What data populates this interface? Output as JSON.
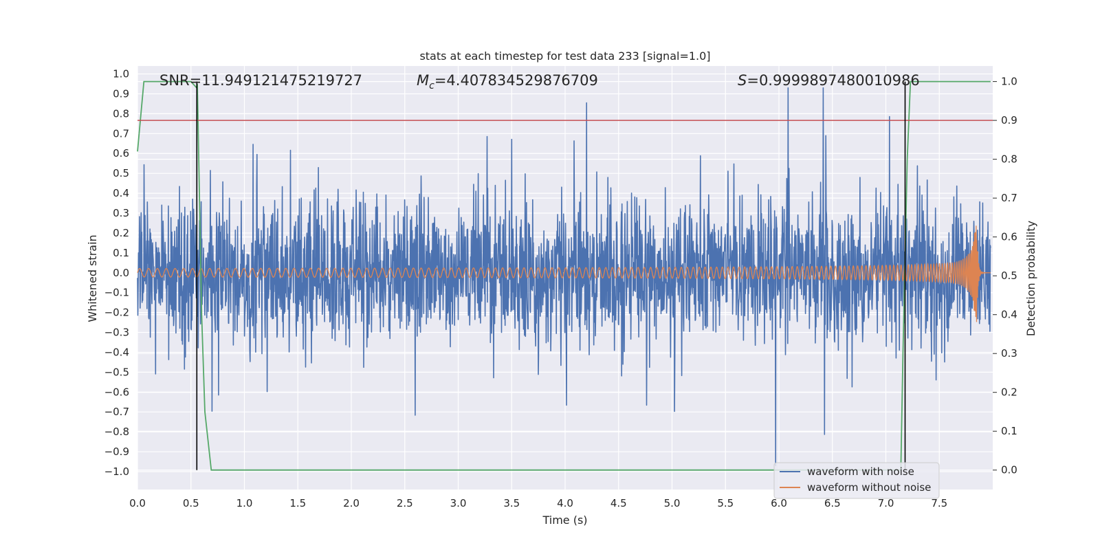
{
  "chart_data": {
    "type": "line",
    "title": "stats at each timestep for test data 233 [signal=1.0]",
    "xlabel": "Time (s)",
    "ylabel": "Whitened strain",
    "ylabel_right": "Detection probability",
    "xlim": [
      0.0,
      8.0
    ],
    "ylim": [
      -1.09,
      1.04
    ],
    "ylim_right": [
      -0.05,
      1.04
    ],
    "xticks": [
      "0.0",
      "0.5",
      "1.0",
      "1.5",
      "2.0",
      "2.5",
      "3.0",
      "3.5",
      "4.0",
      "4.5",
      "5.0",
      "5.5",
      "6.0",
      "6.5",
      "7.0",
      "7.5"
    ],
    "xtick_values": [
      0.0,
      0.5,
      1.0,
      1.5,
      2.0,
      2.5,
      3.0,
      3.5,
      4.0,
      4.5,
      5.0,
      5.5,
      6.0,
      6.5,
      7.0,
      7.5
    ],
    "yticks": [
      "1.0",
      "0.9",
      "0.8",
      "0.7",
      "0.6",
      "0.5",
      "0.4",
      "0.3",
      "0.2",
      "0.1",
      "0.0",
      "−0.1",
      "−0.2",
      "−0.3",
      "−0.4",
      "−0.5",
      "−0.6",
      "−0.7",
      "−0.8",
      "−0.9",
      "−1.0"
    ],
    "ytick_values": [
      1.0,
      0.9,
      0.8,
      0.7,
      0.6,
      0.5,
      0.4,
      0.3,
      0.2,
      0.1,
      0.0,
      -0.1,
      -0.2,
      -0.3,
      -0.4,
      -0.5,
      -0.6,
      -0.7,
      -0.8,
      -0.9,
      -1.0
    ],
    "yticks_right": [
      "1.0",
      "0.9",
      "0.8",
      "0.7",
      "0.6",
      "0.5",
      "0.4",
      "0.3",
      "0.2",
      "0.1",
      "0.0"
    ],
    "ytick_right_values": [
      1.0,
      0.9,
      0.8,
      0.7,
      0.6,
      0.5,
      0.4,
      0.3,
      0.2,
      0.1,
      0.0
    ],
    "annotations": {
      "snr": "SNR=11.949121475219727",
      "mc_symbol": "M",
      "mc_sub": "c",
      "mc_value": "=4.407834529876709",
      "s_symbol": "S",
      "s_value": "=0.9999897480010986"
    },
    "series": [
      {
        "name": "waveform with noise",
        "color": "#4c72b0",
        "description": "dense whitened noisy strain, amplitude roughly ±0.6 with spikes to ±0.9",
        "t_range": [
          0.0,
          7.98
        ]
      },
      {
        "name": "waveform without noise",
        "color": "#dd8452",
        "description": "chirp signal growing from ±0.02 to peak ~0.26 near t=7.85 s then ringing down",
        "t_range": [
          0.0,
          7.98
        ],
        "merger_time": 7.85,
        "peak_amplitude": 0.26
      },
      {
        "name": "detection probability",
        "color": "#55a868",
        "axis": "right",
        "x": [
          0.0,
          0.06,
          0.1,
          0.2,
          0.3,
          0.4,
          0.5,
          0.55,
          0.56,
          0.6,
          0.63,
          0.69,
          7.14,
          7.16,
          7.18,
          7.2,
          7.23,
          7.3,
          7.98
        ],
        "y": [
          0.82,
          1.0,
          1.0,
          1.0,
          1.0,
          1.0,
          1.0,
          0.985,
          0.99,
          0.4,
          0.15,
          0.0,
          0.0,
          0.3,
          0.55,
          0.8,
          1.0,
          1.0,
          1.0
        ]
      }
    ],
    "threshold": {
      "value": 0.9,
      "axis": "right",
      "color": "#c44e52"
    },
    "vlines": [
      {
        "x": 0.555,
        "color": "#000000"
      },
      {
        "x": 7.18,
        "color": "#000000"
      }
    ],
    "legend": {
      "position": "lower-right",
      "entries": [
        {
          "label": "waveform with noise",
          "color": "#4c72b0"
        },
        {
          "label": "waveform without noise",
          "color": "#dd8452"
        }
      ]
    },
    "grid": true
  }
}
